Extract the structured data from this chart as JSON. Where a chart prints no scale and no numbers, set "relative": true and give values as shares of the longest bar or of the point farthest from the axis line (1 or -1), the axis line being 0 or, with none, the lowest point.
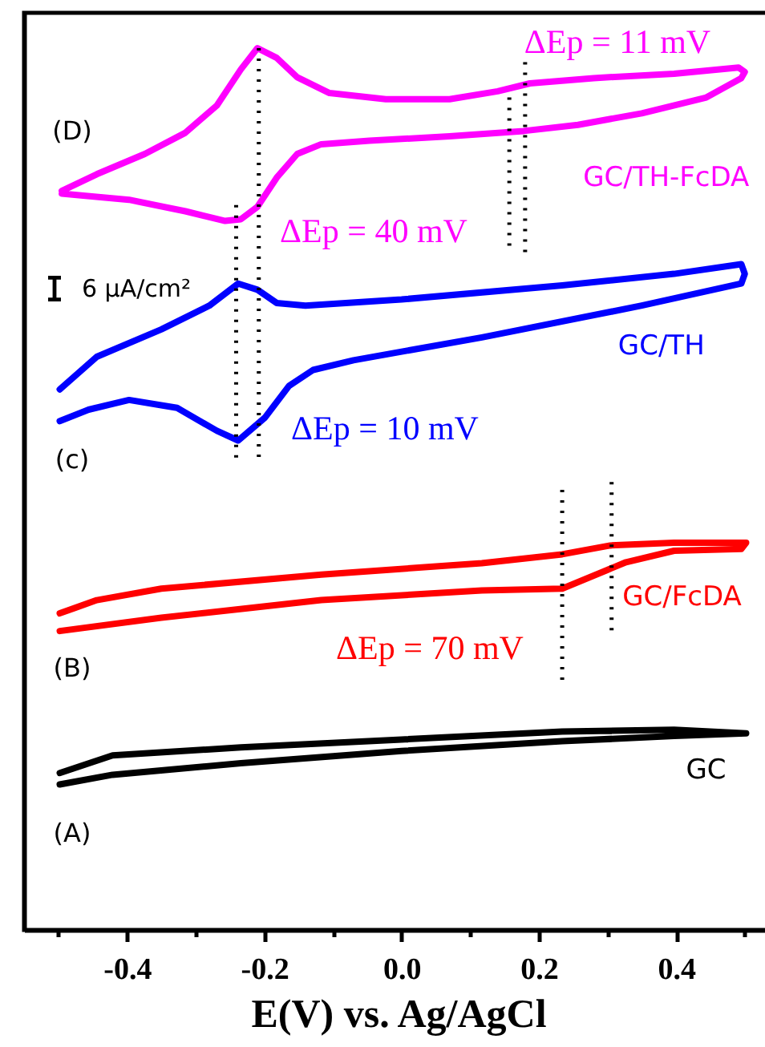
{
  "chart_data": {
    "type": "line",
    "relative": true,
    "xlabel": "E(V) vs. Ag/AgCl",
    "xlim": [
      -0.55,
      0.54
    ],
    "xticks": [
      {
        "value": -0.5,
        "label": null
      },
      {
        "value": -0.4,
        "label": "-0.4"
      },
      {
        "value": -0.3,
        "label": null
      },
      {
        "value": -0.2,
        "label": "-0.2"
      },
      {
        "value": -0.1,
        "label": null
      },
      {
        "value": 0,
        "label": "0.0"
      },
      {
        "value": 0.1,
        "label": null
      },
      {
        "value": 0.2,
        "label": "0.2"
      },
      {
        "value": 0.3,
        "label": null
      },
      {
        "value": 0.4,
        "label": "0.4"
      },
      {
        "value": 0.5,
        "label": null
      }
    ],
    "series": [
      {
        "name": "GC/TH-FcDA",
        "color": "#ff00ff",
        "x": [
          -0.495,
          -0.444,
          -0.374,
          -0.315,
          -0.269,
          -0.234,
          -0.21,
          -0.182,
          -0.152,
          -0.105,
          -0.023,
          0.07,
          0.14,
          0.187,
          0.28,
          0.397,
          0.491,
          0.5,
          0.495,
          0.444,
          0.35,
          0.257,
          0.178,
          0.07,
          -0.047,
          -0.117,
          -0.152,
          -0.182,
          -0.21,
          -0.234,
          -0.257,
          -0.315,
          -0.397,
          -0.467,
          -0.495
        ],
        "values": [
          0.838,
          0.857,
          0.88,
          0.904,
          0.935,
          0.976,
          1.0,
          0.989,
          0.967,
          0.949,
          0.942,
          0.942,
          0.951,
          0.96,
          0.966,
          0.971,
          0.978,
          0.973,
          0.966,
          0.944,
          0.926,
          0.913,
          0.906,
          0.9,
          0.895,
          0.891,
          0.88,
          0.853,
          0.82,
          0.806,
          0.804,
          0.815,
          0.828,
          0.833,
          0.835
        ]
      },
      {
        "name": "GC/TH",
        "color": "#0000ff",
        "x": [
          -0.498,
          -0.444,
          -0.35,
          -0.28,
          -0.238,
          -0.21,
          -0.182,
          -0.14,
          0.0,
          0.234,
          0.397,
          0.495,
          0.5,
          0.495,
          0.35,
          0.117,
          -0.07,
          -0.129,
          -0.164,
          -0.199,
          -0.238,
          -0.269,
          -0.327,
          -0.397,
          -0.456,
          -0.498
        ],
        "values": [
          0.613,
          0.65,
          0.681,
          0.708,
          0.733,
          0.726,
          0.711,
          0.708,
          0.715,
          0.731,
          0.744,
          0.755,
          0.744,
          0.733,
          0.708,
          0.672,
          0.646,
          0.635,
          0.617,
          0.581,
          0.555,
          0.566,
          0.592,
          0.601,
          0.59,
          0.577
        ]
      },
      {
        "name": "GC/FcDA",
        "color": "#ff0000",
        "x": [
          -0.498,
          -0.444,
          -0.35,
          -0.117,
          0.117,
          0.234,
          0.304,
          0.397,
          0.502,
          0.495,
          0.397,
          0.327,
          0.299,
          0.234,
          0.117,
          -0.117,
          -0.35,
          -0.498
        ],
        "values": [
          0.359,
          0.374,
          0.387,
          0.403,
          0.416,
          0.426,
          0.436,
          0.439,
          0.439,
          0.432,
          0.43,
          0.417,
          0.408,
          0.387,
          0.385,
          0.374,
          0.354,
          0.339
        ]
      },
      {
        "name": "GC",
        "color": "#000000",
        "x": [
          -0.498,
          -0.421,
          -0.234,
          0.0,
          0.234,
          0.397,
          0.502,
          0.397,
          0.234,
          0.0,
          -0.234,
          -0.421,
          -0.498
        ],
        "values": [
          0.178,
          0.198,
          0.207,
          0.216,
          0.225,
          0.227,
          0.223,
          0.22,
          0.214,
          0.203,
          0.189,
          0.176,
          0.165
        ]
      },
      {
        "type": "line",
        "line_style": "dotted",
        "color": "#000000",
        "x": [
          -0.208,
          -0.208
        ],
        "values": [
          1.0,
          0.53
        ]
      },
      {
        "type": "line",
        "line_style": "dotted",
        "color": "#000000",
        "x": [
          -0.241,
          -0.241
        ],
        "values": [
          0.822,
          0.53
        ]
      },
      {
        "type": "line",
        "line_style": "dotted",
        "color": "#000000",
        "x": [
          0.157,
          0.157
        ],
        "values": [
          0.944,
          0.771
        ]
      },
      {
        "type": "line",
        "line_style": "dotted",
        "color": "#000000",
        "x": [
          0.18,
          0.18
        ],
        "values": [
          0.984,
          0.762
        ]
      },
      {
        "type": "line",
        "line_style": "dotted",
        "color": "#000000",
        "x": [
          0.234,
          0.234
        ],
        "values": [
          0.499,
          0.281
        ]
      },
      {
        "type": "line",
        "line_style": "dotted",
        "color": "#000000",
        "x": [
          0.306,
          0.306
        ],
        "values": [
          0.508,
          0.339
        ]
      }
    ],
    "annotations": [
      "(D)",
      "(c)",
      "(B)",
      "(A)",
      "ΔEp = 11 mV",
      "ΔEp = 40 mV",
      "ΔEp = 10 mV",
      "ΔEp = 70 mV",
      "6 μA/cm²"
    ]
  }
}
